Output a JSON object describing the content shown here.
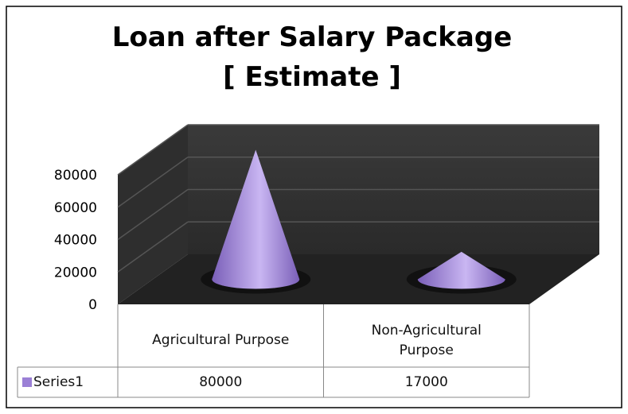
{
  "chart_data": {
    "type": "cone3d",
    "title_lines": [
      "Loan after Salary Package",
      "[ Estimate ]"
    ],
    "categories": [
      "Agricultural Purpose",
      "Non-Agricultural Purpose"
    ],
    "series": [
      {
        "name": "Series1",
        "color": "#9b80d6",
        "values": [
          80000,
          17000
        ]
      }
    ],
    "ylim": [
      0,
      80000
    ],
    "yticks": [
      0,
      20000,
      40000,
      60000,
      80000
    ],
    "grid": true
  }
}
